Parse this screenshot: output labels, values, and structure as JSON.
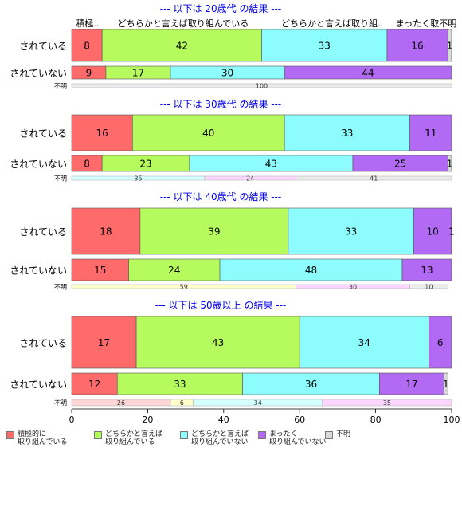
{
  "chart_data": {
    "type": "bar",
    "orientation": "horizontal-stacked-100",
    "categories_legend": [
      "積極的に\n取り組んでいる",
      "どちらかと言えば\n取り組んでいる",
      "どちらかと言えば\n取り組んでいない",
      "まったく\n取り組んでいない",
      "不明"
    ],
    "column_headers": [
      "積極..",
      "どちらかと言えば取り組んでいる",
      "どちらかと言えば取り組..",
      "まったく取不明"
    ],
    "colors": [
      "#ff6b6b",
      "#b6fb5e",
      "#8dfcfc",
      "#b26af4",
      "#d9d9d9"
    ],
    "unknown_colors": [
      "#ffd6d6",
      "#ffffcc",
      "#d6ffff",
      "#fdd6ff",
      "#ececec"
    ],
    "xlim": [
      0,
      100
    ],
    "xticks": [
      "0",
      "20",
      "40",
      "60",
      "80",
      "100"
    ],
    "groups": [
      {
        "title": "--- 以下は 20歳代 の結果 ---",
        "rows": [
          {
            "label": "されている",
            "values": [
              8,
              42,
              33,
              16,
              1
            ]
          },
          {
            "label": "されていない",
            "values": [
              9,
              17,
              30,
              44,
              0
            ]
          }
        ],
        "unknown": {
          "label": "不明",
          "values": [
            0,
            0,
            0,
            0,
            100
          ],
          "text": [
            "",
            "",
            "",
            "",
            "100"
          ]
        }
      },
      {
        "title": "--- 以下は 30歳代 の結果 ---",
        "rows": [
          {
            "label": "されている",
            "values": [
              16,
              40,
              33,
              11,
              0
            ]
          },
          {
            "label": "されていない",
            "values": [
              8,
              23,
              43,
              25,
              1
            ]
          }
        ],
        "unknown": {
          "label": "不明",
          "values": [
            0,
            0,
            35,
            24,
            41
          ],
          "text": [
            "",
            "",
            "35",
            "24",
            "41"
          ]
        }
      },
      {
        "title": "--- 以下は 40歳代 の結果 ---",
        "rows": [
          {
            "label": "されている",
            "values": [
              18,
              39,
              33,
              10,
              1
            ]
          },
          {
            "label": "されていない",
            "values": [
              15,
              24,
              48,
              13,
              0
            ]
          }
        ],
        "unknown": {
          "label": "不明",
          "values": [
            0,
            59,
            0,
            30,
            10
          ],
          "text": [
            "",
            "59",
            "",
            "30",
            "10"
          ]
        }
      },
      {
        "title": "--- 以下は 50歳以上 の結果 ---",
        "rows": [
          {
            "label": "されている",
            "values": [
              17,
              43,
              34,
              6,
              0
            ]
          },
          {
            "label": "されていない",
            "values": [
              12,
              33,
              36,
              17,
              1
            ]
          }
        ],
        "unknown": {
          "label": "不明",
          "values": [
            26,
            6,
            34,
            35,
            0
          ],
          "text": [
            "26",
            "6",
            "34",
            "35",
            ""
          ]
        }
      }
    ]
  }
}
